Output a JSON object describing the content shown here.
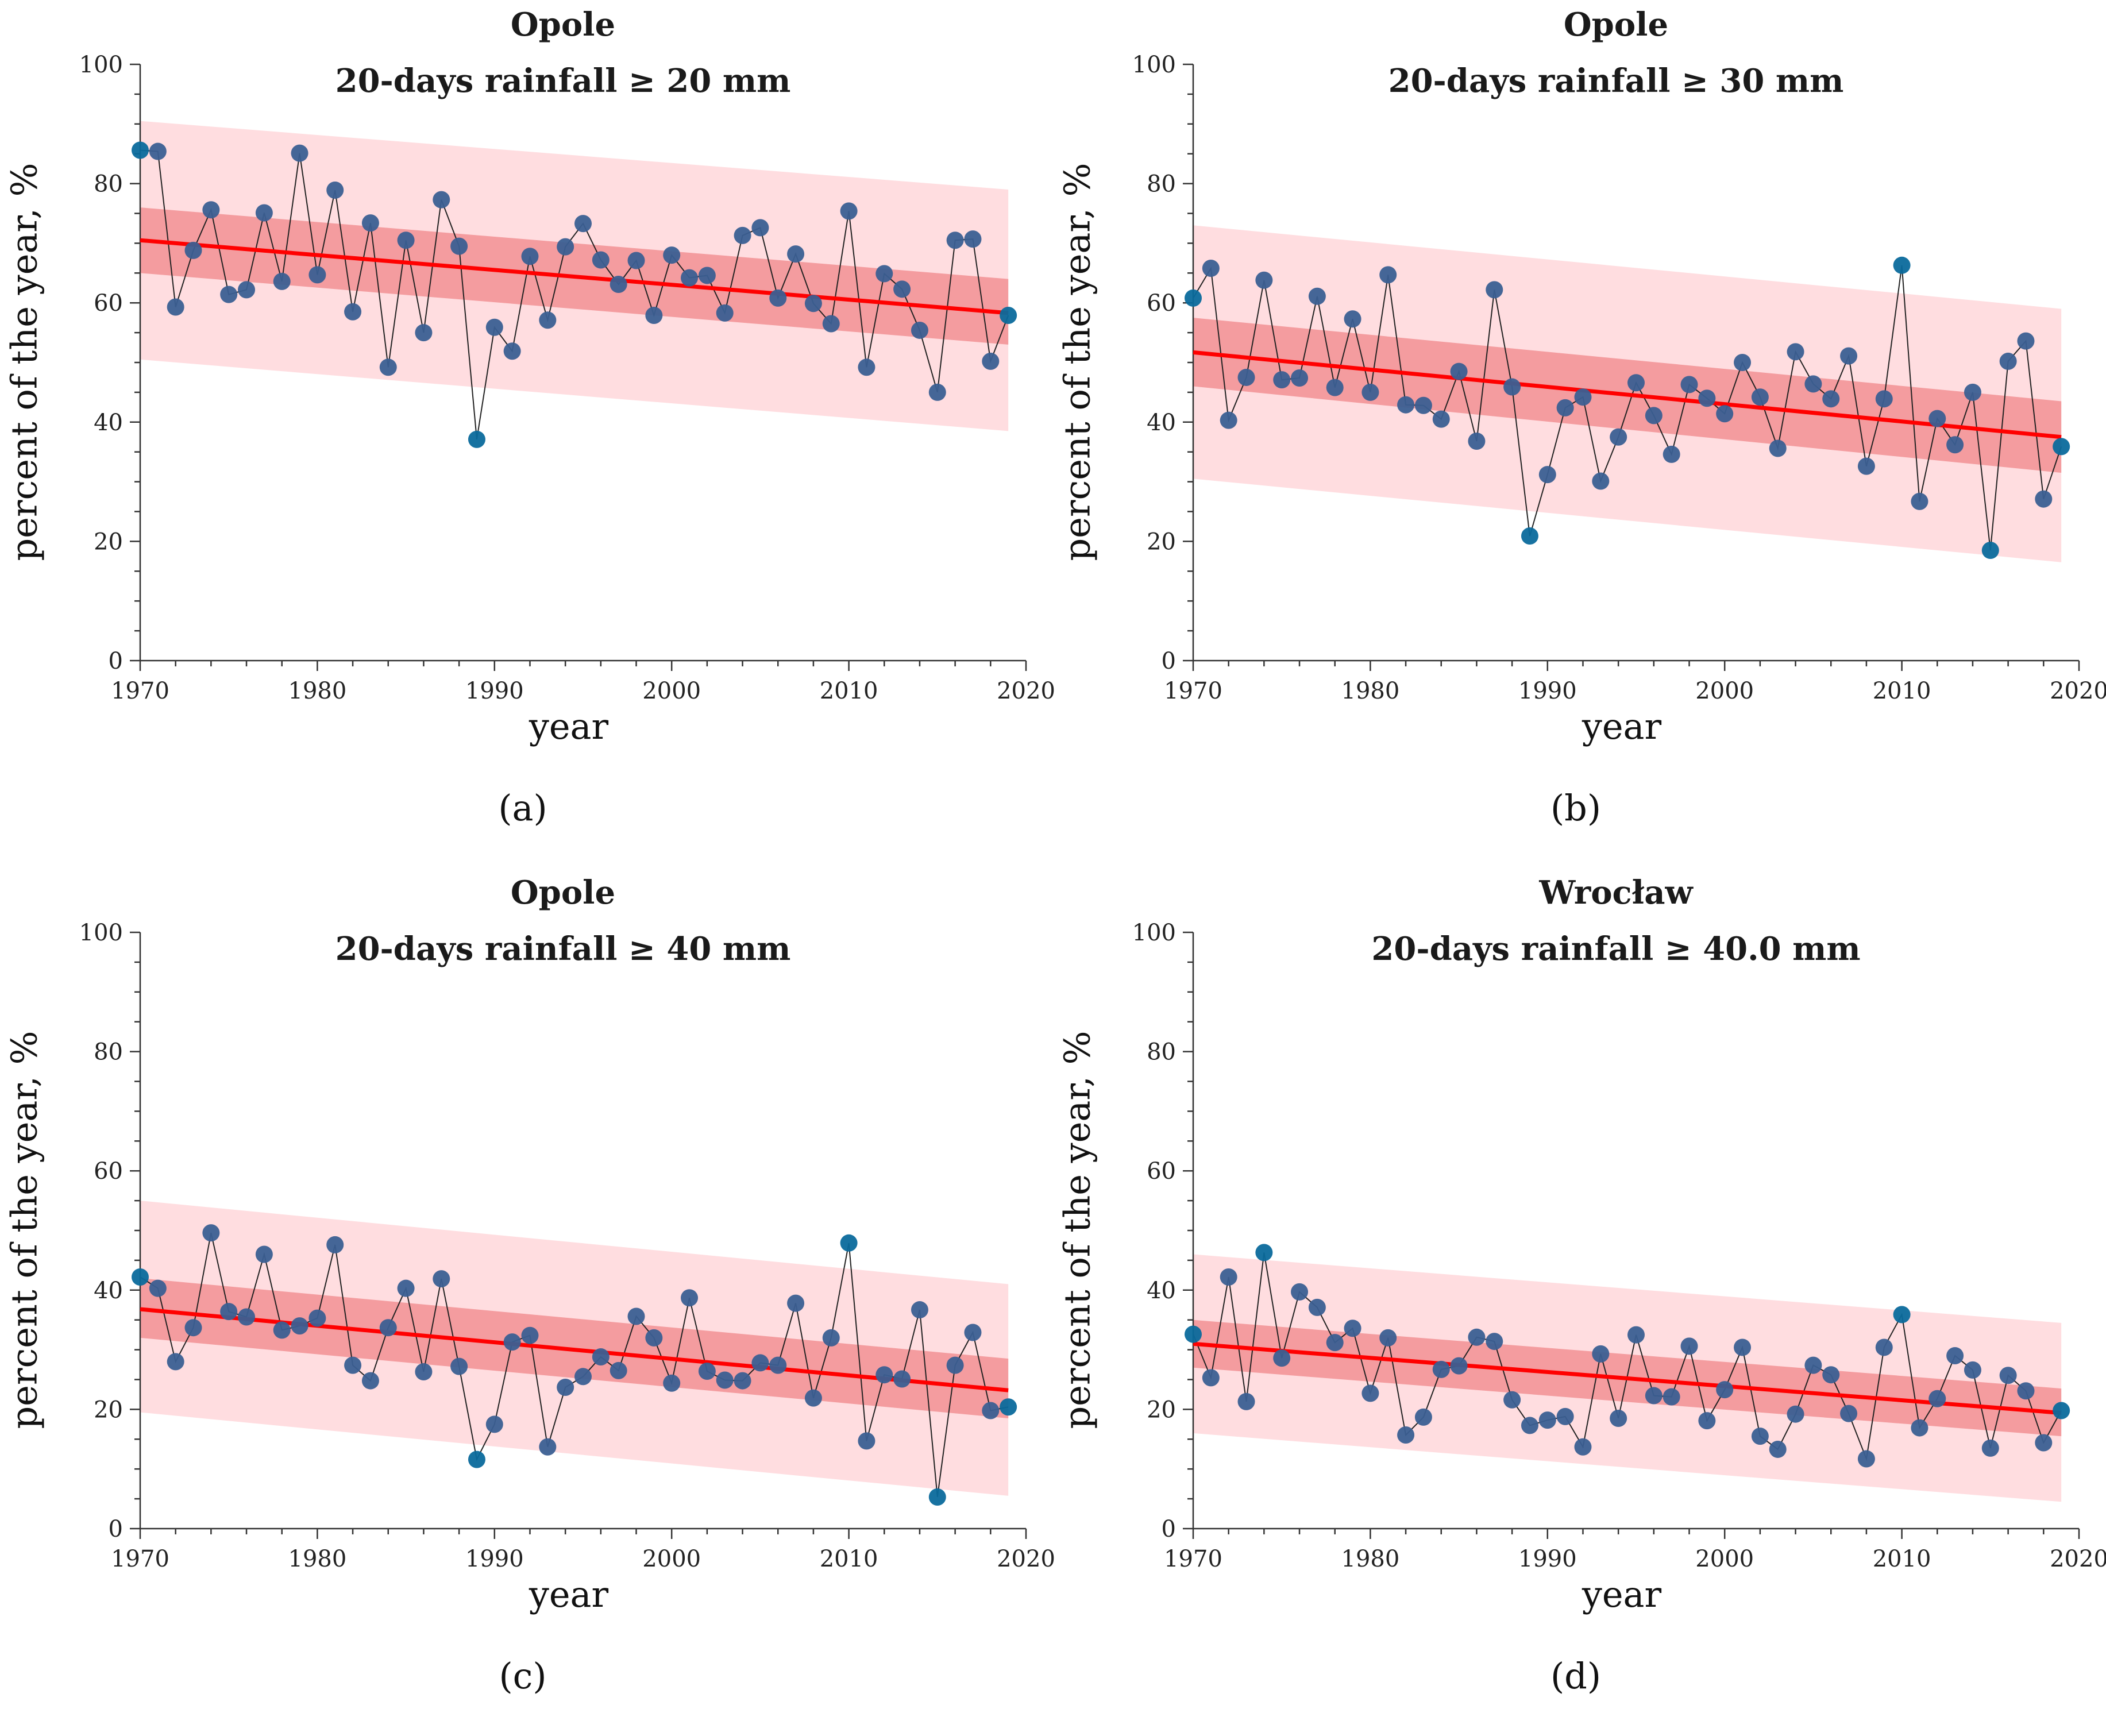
{
  "colors": {
    "outer_band": "#ffd7da",
    "inner_band": "#f0868a",
    "trend_line": "#ff0000",
    "point": "#3b5f92",
    "highlight_point": "#0b6a9c",
    "connector": "#222222"
  },
  "chart_data": [
    {
      "type": "scatter",
      "panel_label": "(a)",
      "station": "Opole",
      "title": "20-days rainfall ≥ 20 mm",
      "xlabel": "year",
      "ylabel": "percent of the year, %",
      "xlim": [
        1970,
        2020
      ],
      "ylim": [
        0,
        100
      ],
      "xticks": [
        1970,
        1980,
        1990,
        2000,
        2010,
        2020
      ],
      "yticks": [
        0,
        20,
        40,
        60,
        80,
        100
      ],
      "x": [
        1970,
        1971,
        1972,
        1973,
        1974,
        1975,
        1976,
        1977,
        1978,
        1979,
        1980,
        1981,
        1982,
        1983,
        1984,
        1985,
        1986,
        1987,
        1988,
        1989,
        1990,
        1991,
        1992,
        1993,
        1994,
        1995,
        1996,
        1997,
        1998,
        1999,
        2000,
        2001,
        2002,
        2003,
        2004,
        2005,
        2006,
        2007,
        2008,
        2009,
        2010,
        2011,
        2012,
        2013,
        2014,
        2015,
        2016,
        2017,
        2018,
        2019
      ],
      "y": [
        85.6,
        85.4,
        59.3,
        68.8,
        75.6,
        61.4,
        62.2,
        75.1,
        63.6,
        85.1,
        64.7,
        78.9,
        58.5,
        73.4,
        49.2,
        70.5,
        55,
        77.3,
        69.5,
        37.1,
        55.9,
        51.9,
        67.8,
        57.1,
        69.4,
        73.3,
        67.2,
        63.1,
        67.1,
        57.9,
        68,
        64.2,
        64.6,
        58.3,
        71.3,
        72.6,
        60.8,
        68.2,
        59.9,
        56.5,
        75.4,
        49.2,
        64.9,
        62.3,
        55.4,
        45,
        70.5,
        70.7,
        50.2,
        57.9
      ],
      "highlighted_x": [
        1970,
        1989,
        2019
      ],
      "trend": {
        "start": [
          1970,
          70.5
        ],
        "end": [
          2019,
          58.3
        ]
      },
      "confidence_band": {
        "start": [
          65.0,
          76.0
        ],
        "end": [
          53.0,
          64.0
        ]
      },
      "prediction_band": {
        "start": [
          50.5,
          90.5
        ],
        "end": [
          38.5,
          79.0
        ]
      }
    },
    {
      "type": "scatter",
      "panel_label": "(b)",
      "station": "Opole",
      "title": "20-days rainfall ≥ 30 mm",
      "xlabel": "year",
      "ylabel": "percent of the year, %",
      "xlim": [
        1970,
        2020
      ],
      "ylim": [
        0,
        100
      ],
      "xticks": [
        1970,
        1980,
        1990,
        2000,
        2010,
        2020
      ],
      "yticks": [
        0,
        20,
        40,
        60,
        80,
        100
      ],
      "x": [
        1970,
        1971,
        1972,
        1973,
        1974,
        1975,
        1976,
        1977,
        1978,
        1979,
        1980,
        1981,
        1982,
        1983,
        1984,
        1985,
        1986,
        1987,
        1988,
        1989,
        1990,
        1991,
        1992,
        1993,
        1994,
        1995,
        1996,
        1997,
        1998,
        1999,
        2000,
        2001,
        2002,
        2003,
        2004,
        2005,
        2006,
        2007,
        2008,
        2009,
        2010,
        2011,
        2012,
        2013,
        2014,
        2015,
        2016,
        2017,
        2018,
        2019
      ],
      "y": [
        60.8,
        65.8,
        40.3,
        47.5,
        63.8,
        47.1,
        47.4,
        61.1,
        45.8,
        57.3,
        45,
        64.7,
        42.9,
        42.8,
        40.5,
        48.5,
        36.8,
        62.2,
        45.9,
        20.9,
        31.2,
        42.4,
        44.2,
        30.1,
        37.5,
        46.6,
        41.1,
        34.6,
        46.3,
        44,
        41.4,
        50,
        44.2,
        35.6,
        51.8,
        46.4,
        43.9,
        51.1,
        32.6,
        43.9,
        66.3,
        26.7,
        40.6,
        36.2,
        45,
        18.5,
        50.2,
        53.6,
        27.1,
        35.9
      ],
      "highlighted_x": [
        1970,
        1989,
        2010,
        2015,
        2019
      ],
      "trend": {
        "start": [
          1970,
          51.7
        ],
        "end": [
          2019,
          37.5
        ]
      },
      "confidence_band": {
        "start": [
          46.0,
          57.5
        ],
        "end": [
          31.5,
          43.5
        ]
      },
      "prediction_band": {
        "start": [
          30.5,
          73.0
        ],
        "end": [
          16.5,
          59.0
        ]
      }
    },
    {
      "type": "scatter",
      "panel_label": "(c)",
      "station": "Opole",
      "title": "20-days rainfall ≥ 40 mm",
      "xlabel": "year",
      "ylabel": "percent of the year, %",
      "xlim": [
        1970,
        2020
      ],
      "ylim": [
        0,
        100
      ],
      "xticks": [
        1970,
        1980,
        1990,
        2000,
        2010,
        2020
      ],
      "yticks": [
        0,
        20,
        40,
        60,
        80,
        100
      ],
      "x": [
        1970,
        1971,
        1972,
        1973,
        1974,
        1975,
        1976,
        1977,
        1978,
        1979,
        1980,
        1981,
        1982,
        1983,
        1984,
        1985,
        1986,
        1987,
        1988,
        1989,
        1990,
        1991,
        1992,
        1993,
        1994,
        1995,
        1996,
        1997,
        1998,
        1999,
        2000,
        2001,
        2002,
        2003,
        2004,
        2005,
        2006,
        2007,
        2008,
        2009,
        2010,
        2011,
        2012,
        2013,
        2014,
        2015,
        2016,
        2017,
        2018,
        2019
      ],
      "y": [
        42.2,
        40.3,
        28,
        33.7,
        49.6,
        36.4,
        35.5,
        46,
        33.3,
        34,
        35.3,
        47.6,
        27.4,
        24.8,
        33.7,
        40.3,
        26.3,
        41.9,
        27.2,
        11.6,
        17.5,
        31.3,
        32.4,
        13.7,
        23.7,
        25.5,
        28.8,
        26.5,
        35.6,
        32,
        24.4,
        38.7,
        26.4,
        24.9,
        24.8,
        27.8,
        27.4,
        37.8,
        21.9,
        32,
        47.9,
        14.7,
        25.8,
        25.1,
        36.7,
        5.3,
        27.4,
        32.9,
        19.8,
        20.4
      ],
      "highlighted_x": [
        1970,
        1989,
        2010,
        2015,
        2019
      ],
      "trend": {
        "start": [
          1970,
          36.8
        ],
        "end": [
          2019,
          23.2
        ]
      },
      "confidence_band": {
        "start": [
          32.0,
          42.0
        ],
        "end": [
          18.5,
          28.5
        ]
      },
      "prediction_band": {
        "start": [
          19.5,
          55.0
        ],
        "end": [
          5.5,
          41.0
        ]
      }
    },
    {
      "type": "scatter",
      "panel_label": "(d)",
      "station": "Wrocław",
      "title": "20-days rainfall ≥ 40.0 mm",
      "xlabel": "year",
      "ylabel": "percent of the year, %",
      "xlim": [
        1970,
        2020
      ],
      "ylim": [
        0,
        100
      ],
      "xticks": [
        1970,
        1980,
        1990,
        2000,
        2010,
        2020
      ],
      "yticks": [
        0,
        20,
        40,
        60,
        80,
        100
      ],
      "x": [
        1970,
        1971,
        1972,
        1973,
        1974,
        1975,
        1976,
        1977,
        1978,
        1979,
        1980,
        1981,
        1982,
        1983,
        1984,
        1985,
        1986,
        1987,
        1988,
        1989,
        1990,
        1991,
        1992,
        1993,
        1994,
        1995,
        1996,
        1997,
        1998,
        1999,
        2000,
        2001,
        2002,
        2003,
        2004,
        2005,
        2006,
        2007,
        2008,
        2009,
        2010,
        2011,
        2012,
        2013,
        2014,
        2015,
        2016,
        2017,
        2018,
        2019
      ],
      "y": [
        32.6,
        25.3,
        42.2,
        21.3,
        46.3,
        28.6,
        39.7,
        37.1,
        31.2,
        33.6,
        22.7,
        32,
        15.7,
        18.7,
        26.7,
        27.3,
        32.1,
        31.4,
        21.6,
        17.3,
        18.2,
        18.8,
        13.7,
        29.3,
        18.5,
        32.5,
        22.3,
        22.1,
        30.6,
        18.1,
        23.3,
        30.4,
        15.5,
        13.3,
        19.2,
        27.4,
        25.8,
        19.3,
        11.7,
        30.4,
        35.9,
        16.9,
        21.8,
        29,
        26.6,
        13.5,
        25.7,
        23.1,
        14.4,
        19.8
      ],
      "highlighted_x": [
        1970,
        1974,
        2010,
        2019
      ],
      "trend": {
        "start": [
          1970,
          31.0
        ],
        "end": [
          2019,
          19.4
        ]
      },
      "confidence_band": {
        "start": [
          27.0,
          35.0
        ],
        "end": [
          15.5,
          23.5
        ]
      },
      "prediction_band": {
        "start": [
          16.0,
          46.0
        ],
        "end": [
          4.5,
          34.5
        ]
      }
    }
  ]
}
